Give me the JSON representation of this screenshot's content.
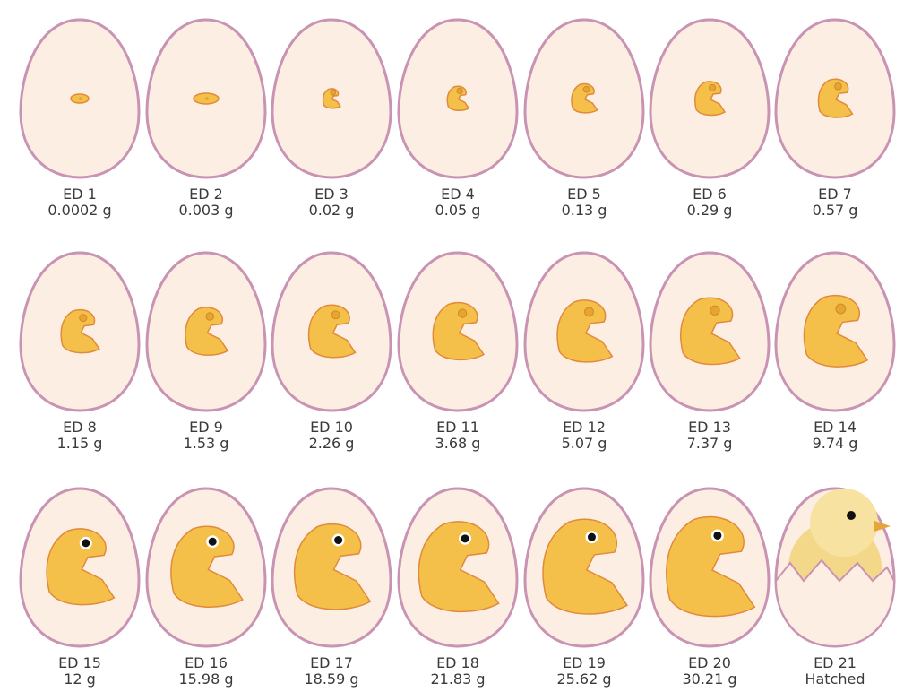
{
  "stages": [
    {
      "label": "ED 1",
      "weight": "0.0002 g"
    },
    {
      "label": "ED 2",
      "weight": "0.003 g"
    },
    {
      "label": "ED 3",
      "weight": "0.02 g"
    },
    {
      "label": "ED 4",
      "weight": "0.05 g"
    },
    {
      "label": "ED 5",
      "weight": "0.13 g"
    },
    {
      "label": "ED 6",
      "weight": "0.29 g"
    },
    {
      "label": "ED 7",
      "weight": "0.57 g"
    },
    {
      "label": "ED 8",
      "weight": "1.15 g"
    },
    {
      "label": "ED 9",
      "weight": "1.53 g"
    },
    {
      "label": "ED 10",
      "weight": "2.26 g"
    },
    {
      "label": "ED 11",
      "weight": "3.68 g"
    },
    {
      "label": "ED 12",
      "weight": "5.07 g"
    },
    {
      "label": "ED 13",
      "weight": "7.37 g"
    },
    {
      "label": "ED 14",
      "weight": "9.74 g"
    },
    {
      "label": "ED 15",
      "weight": "12 g"
    },
    {
      "label": "ED 16",
      "weight": "15.98 g"
    },
    {
      "label": "ED 17",
      "weight": "18.59 g"
    },
    {
      "label": "ED 18",
      "weight": "21.83 g"
    },
    {
      "label": "ED 19",
      "weight": "25.62 g"
    },
    {
      "label": "ED 20",
      "weight": "30.21 g"
    },
    {
      "label": "ED 21",
      "weight": "Hatched"
    }
  ]
}
